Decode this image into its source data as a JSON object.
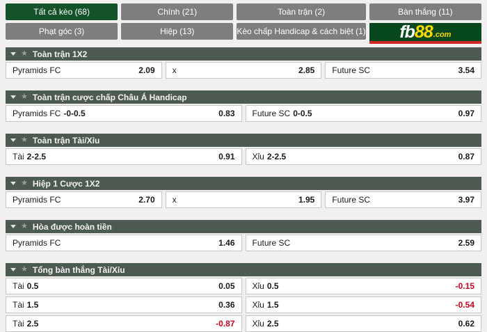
{
  "tabs": [
    {
      "label": "Tất cả kèo (68)",
      "active": true
    },
    {
      "label": "Chính (21)",
      "active": false
    },
    {
      "label": "Toàn trận (2)",
      "active": false
    },
    {
      "label": "Bàn thắng (11)",
      "active": false
    },
    {
      "label": "Phạt góc (3)",
      "active": false
    },
    {
      "label": "Hiệp (13)",
      "active": false
    },
    {
      "label": "Kèo chấp Handicap & cách biệt (1)",
      "active": false
    }
  ],
  "brand": {
    "fb": "fb",
    "eights": "88",
    "com": ".com"
  },
  "sections": [
    {
      "title": "Toàn trận 1X2",
      "rows": [
        {
          "cells": [
            {
              "label": "Pyramids FC",
              "line": "",
              "odds": "2.09"
            },
            {
              "label": "x",
              "line": "",
              "odds": "2.85"
            },
            {
              "label": "Future SC",
              "line": "",
              "odds": "3.54"
            }
          ]
        }
      ]
    },
    {
      "title": "Toàn trận cược chấp Châu Á Handicap",
      "rows": [
        {
          "cells": [
            {
              "label": "Pyramids FC",
              "line": "-0-0.5",
              "odds": "0.83"
            },
            {
              "label": "Future SC",
              "line": "0-0.5",
              "odds": "0.97"
            }
          ]
        }
      ]
    },
    {
      "title": "Toàn trận Tài/Xỉu",
      "rows": [
        {
          "cells": [
            {
              "label": "Tài",
              "line": "2-2.5",
              "odds": "0.91"
            },
            {
              "label": "Xỉu",
              "line": "2-2.5",
              "odds": "0.87"
            }
          ]
        }
      ]
    },
    {
      "title": "Hiệp 1 Cược 1X2",
      "rows": [
        {
          "cells": [
            {
              "label": "Pyramids FC",
              "line": "",
              "odds": "2.70"
            },
            {
              "label": "x",
              "line": "",
              "odds": "1.95"
            },
            {
              "label": "Future SC",
              "line": "",
              "odds": "3.97"
            }
          ]
        }
      ]
    },
    {
      "title": "Hòa được hoàn tiền",
      "rows": [
        {
          "cells": [
            {
              "label": "Pyramids FC",
              "line": "",
              "odds": "1.46"
            },
            {
              "label": "Future SC",
              "line": "",
              "odds": "2.59"
            }
          ]
        }
      ]
    },
    {
      "title": "Tổng bàn thắng Tài/Xỉu",
      "rows": [
        {
          "cells": [
            {
              "label": "Tài",
              "line": "0.5",
              "odds": "0.05"
            },
            {
              "label": "Xỉu",
              "line": "0.5",
              "odds": "-0.15"
            }
          ]
        },
        {
          "cells": [
            {
              "label": "Tài",
              "line": "1.5",
              "odds": "0.36"
            },
            {
              "label": "Xỉu",
              "line": "1.5",
              "odds": "-0.54"
            }
          ]
        },
        {
          "cells": [
            {
              "label": "Tài",
              "line": "2.5",
              "odds": "-0.87"
            },
            {
              "label": "Xỉu",
              "line": "2.5",
              "odds": "0.62"
            }
          ]
        }
      ]
    }
  ],
  "colors": {
    "tab_active_green": "#14532a",
    "tab_gray": "#7e7e7e",
    "section_header": "#4d5a51",
    "negative_odds_red": "#d0021b",
    "brand_green": "#07481f",
    "brand_yellow": "#ffd800",
    "brand_red_stripe": "#cf2a27",
    "cell_border": "#c6c6c4",
    "page_background": "#f1f0ee"
  }
}
